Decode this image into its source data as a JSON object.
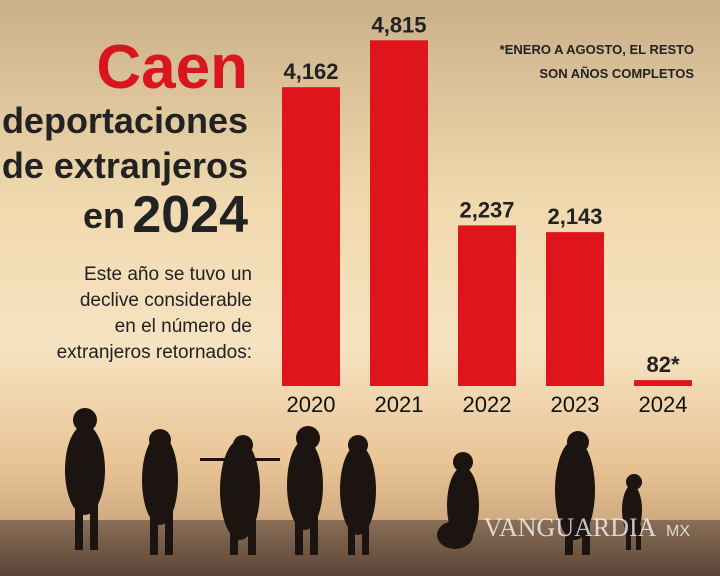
{
  "chart_data": {
    "type": "bar",
    "title_lines": [
      "Caen",
      "deportaciones",
      "de extranjeros",
      "en",
      "2024"
    ],
    "subtitle_lines": [
      "Este año se tuvo un",
      "declive considerable",
      "en el número de",
      "extranjeros retornados:"
    ],
    "note_lines": [
      "*ENERO A AGOSTO, EL RESTO",
      "SON AÑOS COMPLETOS"
    ],
    "categories": [
      "2020",
      "2021",
      "2022",
      "2023",
      "2024"
    ],
    "values": [
      4162,
      4815,
      2237,
      2143,
      82
    ],
    "value_labels": [
      "4,162",
      "4,815",
      "2,237",
      "2,143",
      "82*"
    ],
    "color": "#e0141b",
    "ylim": [
      0,
      5000
    ],
    "watermark": [
      "VANGUARDIA",
      "MX"
    ]
  }
}
